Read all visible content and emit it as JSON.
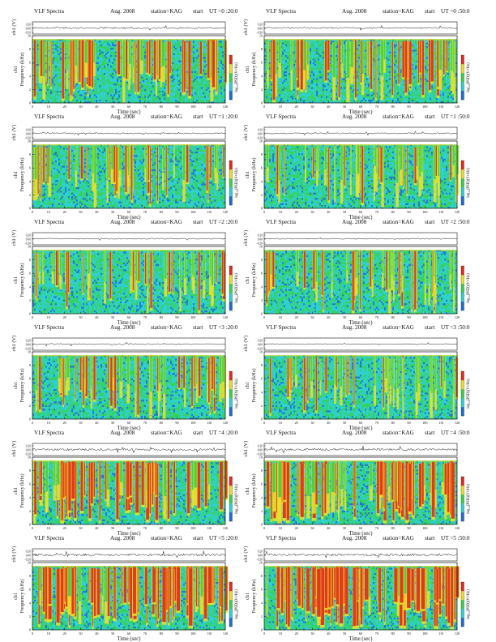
{
  "header_labels": {
    "title": "VLF Spectra",
    "date": "Aug. 2008",
    "station": "station=KAG",
    "start": "start"
  },
  "axis_labels": {
    "time": "Time (sec)",
    "frequency": "Frequency (kHz)",
    "waveform": "ch1 (V)",
    "channel": "ch1",
    "colorbar": "log₁₀(PSD)(V²/Hz)"
  },
  "colors": {
    "blue": "#1f6bd0",
    "cyan": "#2fd0d0",
    "green": "#38d24a",
    "yellow": "#e8e02c",
    "red": "#e0281c",
    "ink": "#111111"
  },
  "chart_data": [
    {
      "type": "heatmap",
      "title": "VLF Spectra",
      "date": "Aug. 2008",
      "station": "station=KAG",
      "start_ut": "UT =0 :20:0",
      "xlabel": "Time (sec)",
      "ylabel": "Frequency (kHz)",
      "xlim": [
        0,
        120
      ],
      "ylim": [
        0,
        10
      ],
      "xticks": [
        "0",
        "10",
        "20",
        "30",
        "40",
        "50",
        "60",
        "70",
        "80",
        "90",
        "100",
        "110",
        "120"
      ],
      "yticks": [
        "0",
        "2",
        "4",
        "6",
        "8",
        "10"
      ],
      "waveform_label": "ch1 (V)",
      "waveform_ticks": [
        "0.20",
        "0.00",
        "-0.20"
      ],
      "colorbar_label": "log₁₀(PSD)(V²/Hz)",
      "activity": 0.55,
      "seed": 11,
      "cutoff_khz": 9.5
    },
    {
      "type": "heatmap",
      "title": "VLF Spectra",
      "date": "Aug. 2008",
      "station": "station=KAG",
      "start_ut": "UT =0 :50:0",
      "xlabel": "Time (sec)",
      "ylabel": "Frequency (kHz)",
      "xlim": [
        0,
        120
      ],
      "ylim": [
        0,
        10
      ],
      "xticks": [
        "0",
        "10",
        "20",
        "30",
        "40",
        "50",
        "60",
        "70",
        "80",
        "90",
        "100",
        "110",
        "120"
      ],
      "yticks": [
        "0",
        "2",
        "4",
        "6",
        "8",
        "10"
      ],
      "waveform_label": "ch1 (V)",
      "waveform_ticks": [
        "0.20",
        "0.00",
        "-0.20"
      ],
      "colorbar_label": "log₁₀(PSD)(V²/Hz)",
      "activity": 0.5,
      "seed": 23,
      "cutoff_khz": 9.5
    },
    {
      "type": "heatmap",
      "title": "VLF Spectra",
      "date": "Aug. 2008",
      "station": "station=KAG",
      "start_ut": "UT =1 :20:0",
      "xlabel": "Time (sec)",
      "ylabel": "Frequency (kHz)",
      "xlim": [
        0,
        120
      ],
      "ylim": [
        0,
        10
      ],
      "xticks": [
        "0",
        "10",
        "20",
        "30",
        "40",
        "50",
        "60",
        "70",
        "80",
        "90",
        "100",
        "110",
        "120"
      ],
      "yticks": [
        "0",
        "2",
        "4",
        "6",
        "8",
        "10"
      ],
      "waveform_label": "ch1 (V)",
      "waveform_ticks": [
        "0.20",
        "0.00",
        "-0.20"
      ],
      "colorbar_label": "log₁₀(PSD)(V²/Hz)",
      "activity": 0.3,
      "seed": 37,
      "cutoff_khz": 9.5
    },
    {
      "type": "heatmap",
      "title": "VLF Spectra",
      "date": "Aug. 2008",
      "station": "station=KAG",
      "start_ut": "UT =1 :50:0",
      "xlabel": "Time (sec)",
      "ylabel": "Frequency (kHz)",
      "xlim": [
        0,
        120
      ],
      "ylim": [
        0,
        10
      ],
      "xticks": [
        "0",
        "10",
        "20",
        "30",
        "40",
        "50",
        "60",
        "70",
        "80",
        "90",
        "100",
        "110",
        "120"
      ],
      "yticks": [
        "0",
        "2",
        "4",
        "6",
        "8",
        "10"
      ],
      "waveform_label": "ch1 (V)",
      "waveform_ticks": [
        "0.20",
        "0.00",
        "-0.20"
      ],
      "colorbar_label": "log₁₀(PSD)(V²/Hz)",
      "activity": 0.3,
      "seed": 41,
      "cutoff_khz": 9.5
    },
    {
      "type": "heatmap",
      "title": "VLF Spectra",
      "date": "Aug. 2008",
      "station": "station=KAG",
      "start_ut": "UT =2 :20:0",
      "xlabel": "Time (sec)",
      "ylabel": "Frequency (kHz)",
      "xlim": [
        0,
        120
      ],
      "ylim": [
        0,
        10
      ],
      "xticks": [
        "0",
        "10",
        "20",
        "30",
        "40",
        "50",
        "60",
        "70",
        "80",
        "90",
        "100",
        "110",
        "120"
      ],
      "yticks": [
        "0",
        "2",
        "4",
        "6",
        "8",
        "10"
      ],
      "waveform_label": "ch1 (V)",
      "waveform_ticks": [
        "0.20",
        "0.00",
        "-0.20"
      ],
      "colorbar_label": "log₁₀(PSD)(V²/Hz)",
      "activity": 0.22,
      "seed": 53,
      "cutoff_khz": 9.5
    },
    {
      "type": "heatmap",
      "title": "VLF Spectra",
      "date": "Aug. 2008",
      "station": "station=KAG",
      "start_ut": "UT =2 :50:0",
      "xlabel": "Time (sec)",
      "ylabel": "Frequency (kHz)",
      "xlim": [
        0,
        120
      ],
      "ylim": [
        0,
        10
      ],
      "xticks": [
        "0",
        "10",
        "20",
        "30",
        "40",
        "50",
        "60",
        "70",
        "80",
        "90",
        "100",
        "110",
        "120"
      ],
      "yticks": [
        "0",
        "2",
        "4",
        "6",
        "8",
        "10"
      ],
      "waveform_label": "ch1 (V)",
      "waveform_ticks": [
        "0.20",
        "0.00",
        "-0.20"
      ],
      "colorbar_label": "log₁₀(PSD)(V²/Hz)",
      "activity": 0.22,
      "seed": 61,
      "cutoff_khz": 9.5
    },
    {
      "type": "heatmap",
      "title": "VLF Spectra",
      "date": "Aug. 2008",
      "station": "station=KAG",
      "start_ut": "UT =3 :20:0",
      "xlabel": "Time (sec)",
      "ylabel": "Frequency (kHz)",
      "xlim": [
        0,
        120
      ],
      "ylim": [
        0,
        10
      ],
      "xticks": [
        "0",
        "10",
        "20",
        "30",
        "40",
        "50",
        "60",
        "70",
        "80",
        "90",
        "100",
        "110",
        "120"
      ],
      "yticks": [
        "0",
        "2",
        "4",
        "6",
        "8",
        "10"
      ],
      "waveform_label": "ch1 (V)",
      "waveform_ticks": [
        "0.20",
        "0.00",
        "-0.20"
      ],
      "colorbar_label": "log₁₀(PSD)(V²/Hz)",
      "activity": 0.3,
      "seed": 73,
      "cutoff_khz": 9.5
    },
    {
      "type": "heatmap",
      "title": "VLF Spectra",
      "date": "Aug. 2008",
      "station": "station=KAG",
      "start_ut": "UT =3 :50:0",
      "xlabel": "Time (sec)",
      "ylabel": "Frequency (kHz)",
      "xlim": [
        0,
        120
      ],
      "ylim": [
        0,
        10
      ],
      "xticks": [
        "0",
        "10",
        "20",
        "30",
        "40",
        "50",
        "60",
        "70",
        "80",
        "90",
        "100",
        "110",
        "120"
      ],
      "yticks": [
        "0",
        "2",
        "4",
        "6",
        "8",
        "10"
      ],
      "waveform_label": "ch1 (V)",
      "waveform_ticks": [
        "0.20",
        "0.00",
        "-0.20"
      ],
      "colorbar_label": "log₁₀(PSD)(V²/Hz)",
      "activity": 0.18,
      "seed": 89,
      "cutoff_khz": 9.5
    },
    {
      "type": "heatmap",
      "title": "VLF Spectra",
      "date": "Aug. 2008",
      "station": "station=KAG",
      "start_ut": "UT =4 :20:0",
      "xlabel": "Time (sec)",
      "ylabel": "Frequency (kHz)",
      "xlim": [
        0,
        120
      ],
      "ylim": [
        0,
        10
      ],
      "xticks": [
        "0",
        "10",
        "20",
        "30",
        "40",
        "50",
        "60",
        "70",
        "80",
        "90",
        "100",
        "110",
        "120"
      ],
      "yticks": [
        "0",
        "2",
        "4",
        "6",
        "8",
        "10"
      ],
      "waveform_label": "ch1 (V)",
      "waveform_ticks": [
        "0.20",
        "0.00",
        "-0.20"
      ],
      "colorbar_label": "log₁₀(PSD)(V²/Hz)",
      "activity": 0.75,
      "seed": 97,
      "cutoff_khz": 9.5
    },
    {
      "type": "heatmap",
      "title": "VLF Spectra",
      "date": "Aug. 2008",
      "station": "station=KAG",
      "start_ut": "UT =4 :50:0",
      "xlabel": "Time (sec)",
      "ylabel": "Frequency (kHz)",
      "xlim": [
        0,
        120
      ],
      "ylim": [
        0,
        10
      ],
      "xticks": [
        "0",
        "10",
        "20",
        "30",
        "40",
        "50",
        "60",
        "70",
        "80",
        "90",
        "100",
        "110",
        "120"
      ],
      "yticks": [
        "0",
        "2",
        "4",
        "6",
        "8",
        "10"
      ],
      "waveform_label": "ch1 (V)",
      "waveform_ticks": [
        "0.20",
        "0.00",
        "-0.20"
      ],
      "colorbar_label": "log₁₀(PSD)(V²/Hz)",
      "activity": 0.78,
      "seed": 103,
      "cutoff_khz": 9.5
    },
    {
      "type": "heatmap",
      "title": "VLF Spectra",
      "date": "Aug. 2008",
      "station": "station=KAG",
      "start_ut": "UT =5 :20:0",
      "xlabel": "Time (sec)",
      "ylabel": "Frequency (kHz)",
      "xlim": [
        0,
        120
      ],
      "ylim": [
        0,
        10
      ],
      "xticks": [
        "0",
        "10",
        "20",
        "30",
        "40",
        "50",
        "60",
        "70",
        "80",
        "90",
        "100",
        "110",
        "120"
      ],
      "yticks": [
        "0",
        "2",
        "4",
        "6",
        "8",
        "10"
      ],
      "waveform_label": "ch1 (V)",
      "waveform_ticks": [
        "0.20",
        "0.00",
        "-0.20"
      ],
      "colorbar_label": "log₁₀(PSD)(V²/Hz)",
      "activity": 0.92,
      "seed": 113,
      "cutoff_khz": 9.5
    },
    {
      "type": "heatmap",
      "title": "VLF Spectra",
      "date": "Aug. 2008",
      "station": "station=KAG",
      "start_ut": "UT =5 :50:0",
      "xlabel": "Time (sec)",
      "ylabel": "Frequency (kHz)",
      "xlim": [
        0,
        120
      ],
      "ylim": [
        0,
        10
      ],
      "xticks": [
        "0",
        "10",
        "20",
        "30",
        "40",
        "50",
        "60",
        "70",
        "80",
        "90",
        "100",
        "110",
        "120"
      ],
      "yticks": [
        "0",
        "2",
        "4",
        "6",
        "8",
        "10"
      ],
      "waveform_label": "ch1 (V)",
      "waveform_ticks": [
        "0.20",
        "0.00",
        "-0.20"
      ],
      "colorbar_label": "log₁₀(PSD)(V²/Hz)",
      "activity": 0.95,
      "seed": 127,
      "cutoff_khz": 9.5
    }
  ]
}
